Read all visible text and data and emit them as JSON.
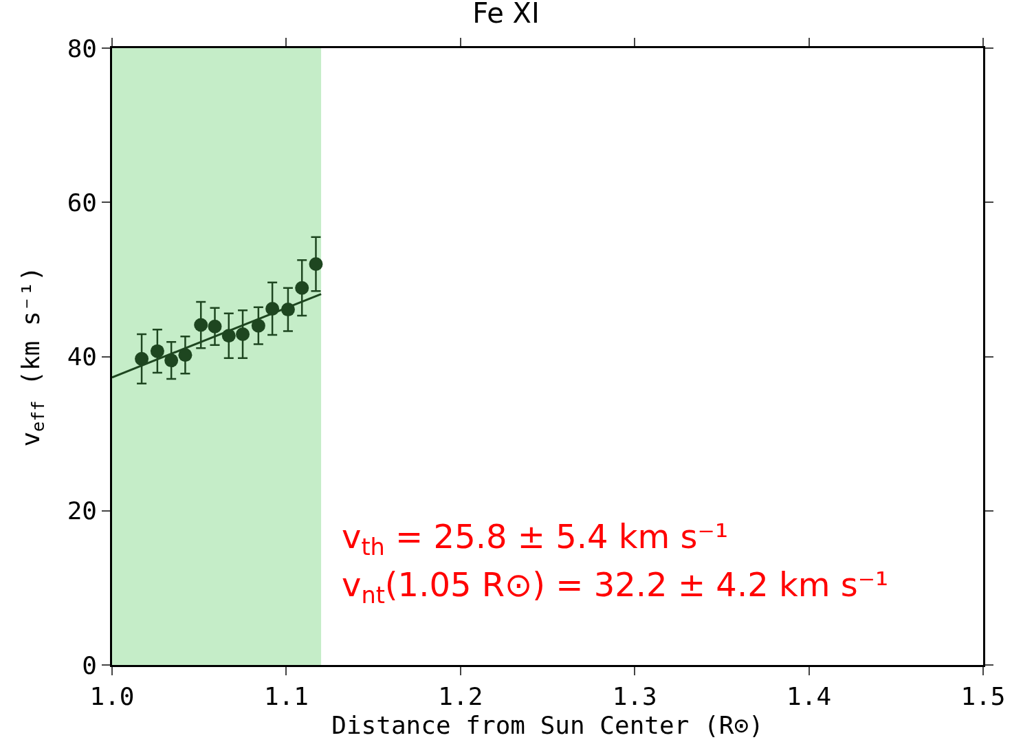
{
  "chart_data": {
    "type": "scatter",
    "title": "Fe XI",
    "xlabel": "Distance from Sun Center (R⊙)",
    "ylabel": "v$_{eff}$ (km s⁻¹)",
    "annotations": [
      "v$_{th}$ = 25.8 ± 5.4 km s⁻¹",
      "v$_{nt}$(1.05 R⊙) = 32.2 ± 4.2 km s⁻¹"
    ],
    "series": [
      {
        "color": "#1e4620",
        "marker": "circle",
        "x": [
          1.017,
          1.026,
          1.034,
          1.042,
          1.051,
          1.059,
          1.067,
          1.075,
          1.084,
          1.092,
          1.101,
          1.109,
          1.117
        ],
        "values": [
          39.7,
          40.7,
          39.5,
          40.2,
          44.1,
          43.9,
          42.7,
          42.9,
          44.0,
          46.2,
          46.1,
          48.9,
          52.0
        ],
        "errors": [
          3.2,
          2.8,
          2.4,
          2.4,
          3.0,
          2.4,
          2.9,
          3.1,
          2.4,
          3.4,
          2.8,
          3.6,
          3.5
        ]
      },
      {
        "type": "line",
        "color": "#1e4620",
        "x": [
          1.0,
          1.12
        ],
        "values": [
          37.3,
          48.1
        ]
      }
    ],
    "bands": [
      {
        "axis": "x",
        "from": 1.0,
        "to": 1.12,
        "color": "#c5edc8"
      }
    ],
    "xlim": [
      1.0,
      1.5
    ],
    "xticks": [
      {
        "value": 1.0,
        "label": "1.0"
      },
      1.1,
      1.2,
      1.3,
      1.4,
      1.5
    ],
    "ylim": [
      0,
      80
    ],
    "yticks": [
      0,
      20,
      40,
      60,
      80
    ],
    "grid": false
  }
}
